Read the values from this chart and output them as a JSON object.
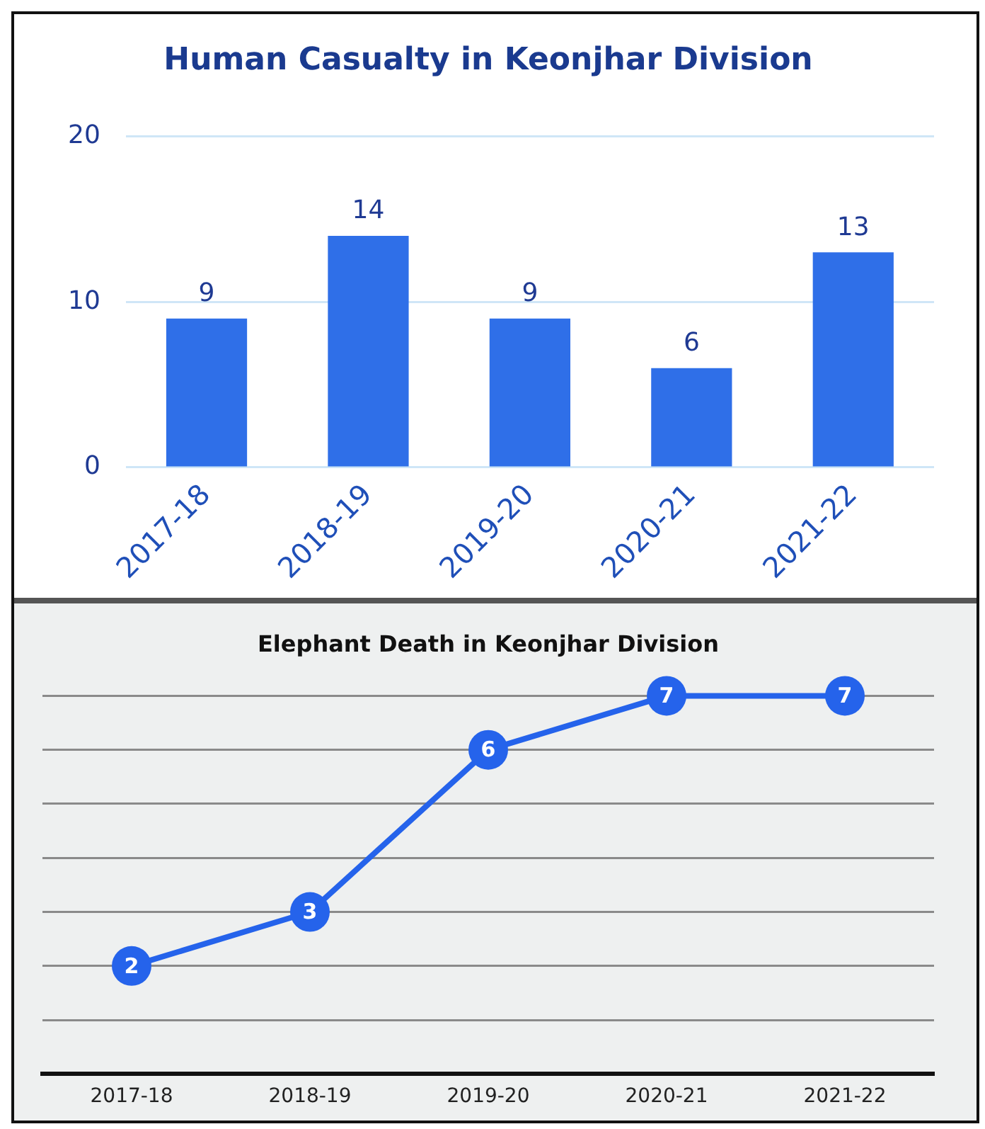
{
  "chart_data": [
    {
      "type": "bar",
      "title": "Human Casualty in Keonjhar Division",
      "categories": [
        "2017-18",
        "2018-19",
        "2019-20",
        "2020-21",
        "2021-22"
      ],
      "values": [
        9,
        14,
        9,
        6,
        13
      ],
      "color": "#2f6fe8",
      "ylim": [
        0,
        20
      ],
      "yticks": [
        0,
        10,
        20
      ],
      "grid": "y",
      "data_labels": true
    },
    {
      "type": "line",
      "title": "Elephant Death in Keonjhar Division",
      "categories": [
        "2017-18",
        "2018-19",
        "2019-20",
        "2020-21",
        "2021-22"
      ],
      "values": [
        2,
        3,
        6,
        7,
        7
      ],
      "color": "#2563eb",
      "ylim": [
        0,
        7
      ],
      "yticks": [
        {
          "value": 1,
          "label": null
        },
        {
          "value": 2,
          "label": null
        },
        {
          "value": 3,
          "label": null
        },
        {
          "value": 4,
          "label": null
        },
        {
          "value": 5,
          "label": null
        },
        {
          "value": 6,
          "label": null
        },
        {
          "value": 7,
          "label": null
        }
      ],
      "grid": "y",
      "tick_labels": "x",
      "marker": "circle",
      "line_style": "solid",
      "data_labels": true
    }
  ]
}
